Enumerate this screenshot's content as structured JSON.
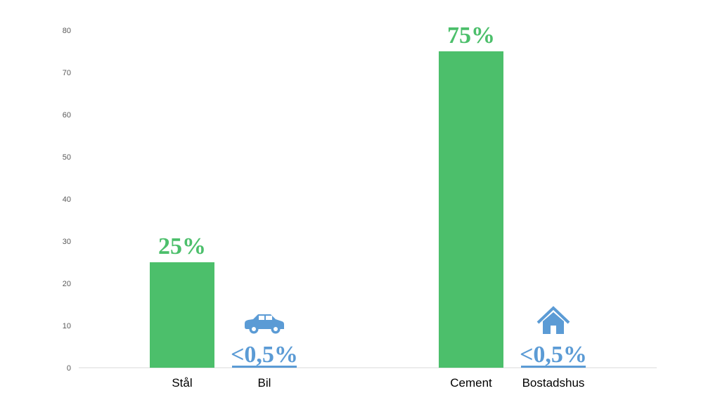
{
  "chart_data": {
    "type": "bar",
    "categories": [
      "Stål",
      "Bil",
      "Cement",
      "Bostadshus"
    ],
    "values": [
      25,
      0.5,
      75,
      0.5
    ],
    "data_labels": [
      "25%",
      "<0,5%",
      "75%",
      "<0,5%"
    ],
    "bar_colors": [
      "#4cbf6b",
      "#5b9bd5",
      "#4cbf6b",
      "#5b9bd5"
    ],
    "icons": [
      null,
      "car-icon",
      null,
      "house-icon"
    ],
    "yticks": [
      "0",
      "10",
      "20",
      "30",
      "40",
      "50",
      "60",
      "70",
      "80"
    ],
    "ylim": [
      0,
      80
    ],
    "grid": false,
    "title": "",
    "xlabel": "",
    "ylabel": ""
  }
}
